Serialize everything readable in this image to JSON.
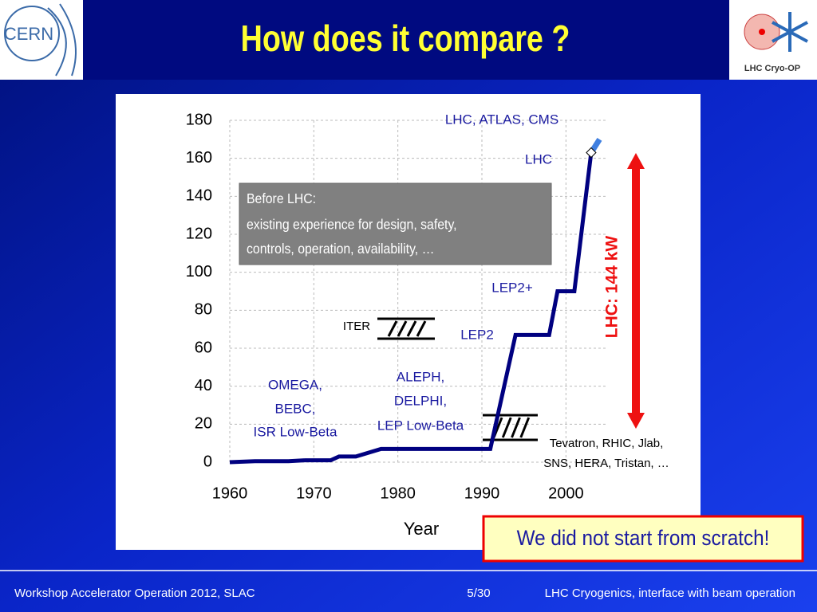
{
  "header": {
    "title": "How does it compare ?",
    "logo_left": "CERN",
    "logo_right": "LHC Cryo-OP"
  },
  "chart_data": {
    "type": "line",
    "x_label": "Year",
    "xlim": [
      1960,
      2005
    ],
    "xticks": [
      1960,
      1970,
      1980,
      1990,
      2000
    ],
    "ylim": [
      0,
      180
    ],
    "yticks": [
      0,
      20,
      40,
      60,
      80,
      100,
      120,
      140,
      160,
      180
    ],
    "grid": true,
    "series": [
      {
        "color": "#000080",
        "x": [
          1960,
          1963,
          1967,
          1969,
          1972,
          1973,
          1975,
          1978,
          1991,
          1994,
          1998,
          1999,
          2001,
          2003
        ],
        "values": [
          0,
          0.5,
          0.5,
          1,
          1,
          3,
          3,
          7,
          7,
          67,
          67,
          90,
          90,
          163
        ]
      },
      {
        "color": "#3f7fe0",
        "x": [
          2003,
          2004
        ],
        "values": [
          163,
          170
        ]
      }
    ],
    "annotations": [
      [
        "LHC, ATLAS, CMS"
      ],
      [
        "LHC"
      ],
      [
        "LEP2+"
      ],
      [
        "LEP2"
      ],
      [
        "ITER"
      ],
      [
        "ALEPH,",
        "DELPHI,",
        "LEP Low-Beta"
      ],
      [
        "OMEGA,",
        "BEBC,",
        "ISR Low-Beta"
      ],
      [
        "Tevatron, RHIC, Jlab,",
        "SNS, HERA, Tristan, …"
      ]
    ],
    "note_box": [
      "Before LHC:",
      "existing experience for design, safety,",
      "controls, operation, availability, …"
    ],
    "arrow_label": "LHC:  144 kW"
  },
  "callout": "We did not start from scratch!",
  "footer": {
    "left": "Workshop Accelerator Operation 2012, SLAC",
    "page": "5/30",
    "right": "LHC Cryogenics, interface with beam operation"
  }
}
